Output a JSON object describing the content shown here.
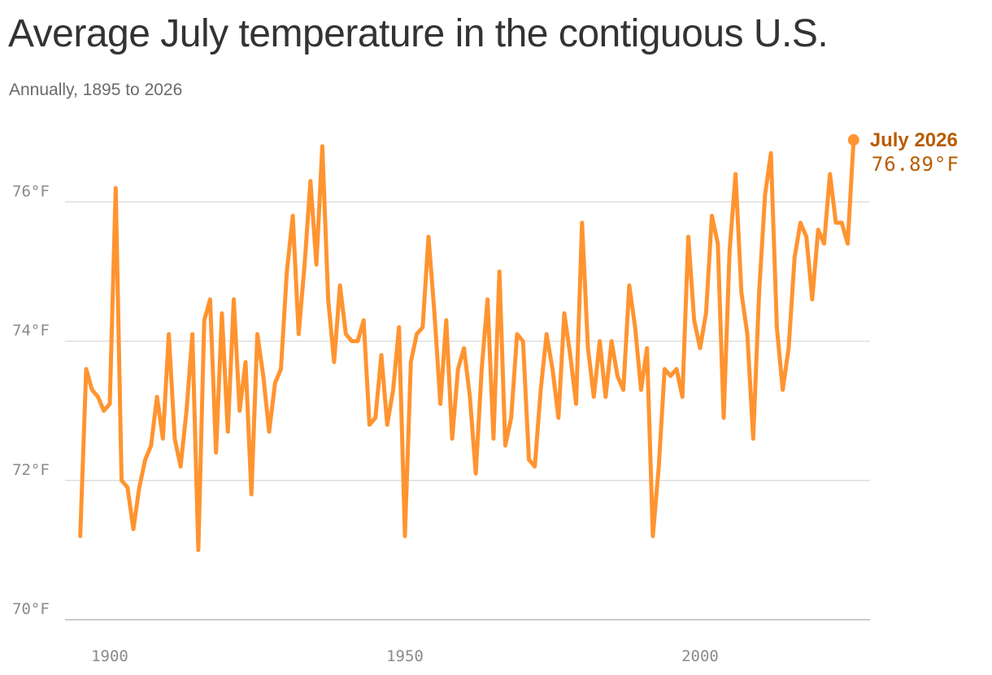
{
  "title": "Average July temperature in the contiguous U.S.",
  "subtitle": "Annually, 1895 to 2026",
  "colors": {
    "line": "#ff9430",
    "annotation": "#b85c00",
    "grid": "#dedede",
    "axis": "#cccccc"
  },
  "annotation": {
    "label": "July 2026",
    "value": "76.89°F"
  },
  "chart_data": {
    "type": "line",
    "x_start": 1895,
    "x_end": 2026,
    "xlim": [
      1895,
      2026
    ],
    "ylim": [
      70,
      76.9
    ],
    "yticks": [
      70,
      72,
      74,
      76
    ],
    "ytick_labels": [
      "70°F",
      "72°F",
      "74°F",
      "76°F"
    ],
    "xticks": [
      1900,
      1950,
      2000
    ],
    "xtick_labels": [
      "1900",
      "1950",
      "2000"
    ],
    "grid": true,
    "series": [
      {
        "values": [
          71.2,
          73.6,
          73.3,
          73.2,
          73.0,
          73.1,
          76.2,
          72.0,
          71.9,
          71.3,
          71.9,
          72.3,
          72.5,
          73.2,
          72.6,
          74.1,
          72.6,
          72.2,
          73.0,
          74.1,
          71.0,
          74.3,
          74.6,
          72.4,
          74.4,
          72.7,
          74.6,
          73.0,
          73.7,
          71.8,
          74.1,
          73.5,
          72.7,
          73.4,
          73.6,
          75.0,
          75.8,
          74.1,
          75.1,
          76.3,
          75.1,
          76.8,
          74.6,
          73.7,
          74.8,
          74.1,
          74.0,
          74.0,
          74.3,
          72.8,
          72.9,
          73.8,
          72.8,
          73.3,
          74.2,
          71.2,
          73.7,
          74.1,
          74.2,
          75.5,
          74.4,
          73.1,
          74.3,
          72.6,
          73.6,
          73.9,
          73.2,
          72.1,
          73.6,
          74.6,
          72.6,
          75.0,
          72.5,
          72.9,
          74.1,
          74.0,
          72.3,
          72.2,
          73.3,
          74.1,
          73.6,
          72.9,
          74.4,
          73.8,
          73.1,
          75.7,
          73.9,
          73.2,
          74.0,
          73.2,
          74.0,
          73.5,
          73.3,
          74.8,
          74.2,
          73.3,
          73.9,
          71.2,
          72.2,
          73.6,
          73.5,
          73.6,
          73.2,
          75.5,
          74.3,
          73.9,
          74.4,
          75.8,
          75.4,
          72.9,
          75.3,
          76.4,
          74.7,
          74.1,
          72.6,
          74.7,
          76.1,
          76.7,
          74.2,
          73.3,
          73.9,
          75.2,
          75.7,
          75.5,
          74.6,
          75.6,
          75.4,
          76.4,
          75.7,
          75.7,
          75.4,
          76.89
        ]
      }
    ]
  }
}
